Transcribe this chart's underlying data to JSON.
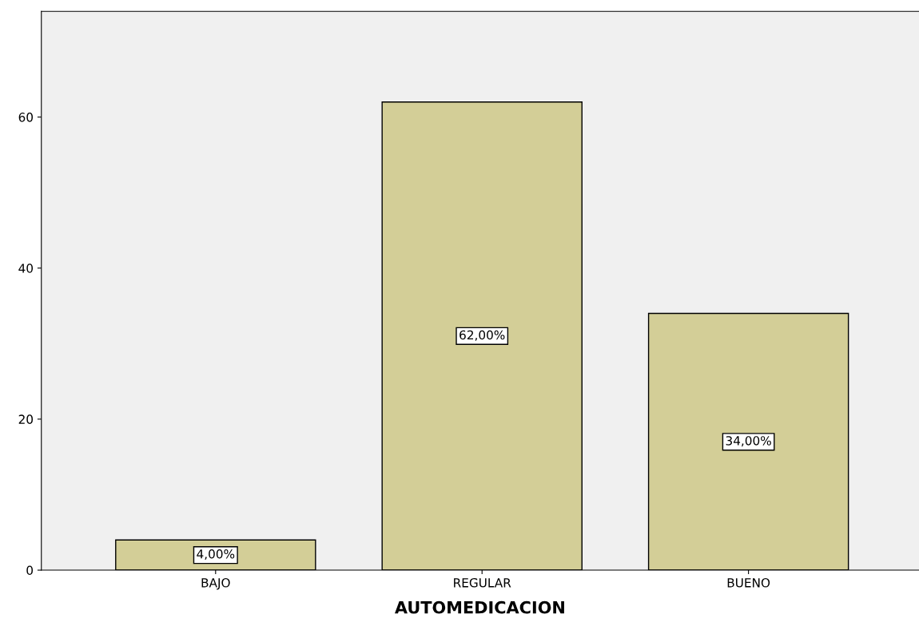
{
  "chart_data": {
    "type": "bar",
    "xlabel": "AUTOMEDICACION",
    "categories": [
      "BAJO",
      "REGULAR",
      "BUENO"
    ],
    "values": [
      4,
      62,
      34
    ],
    "color": "#d3ce97",
    "value_labels": [
      "4,00%",
      "62,00%",
      "34,00%"
    ],
    "ylim": [
      0,
      74
    ],
    "yticks": [
      0,
      20,
      40,
      60
    ],
    "grid": false,
    "legend": false
  }
}
